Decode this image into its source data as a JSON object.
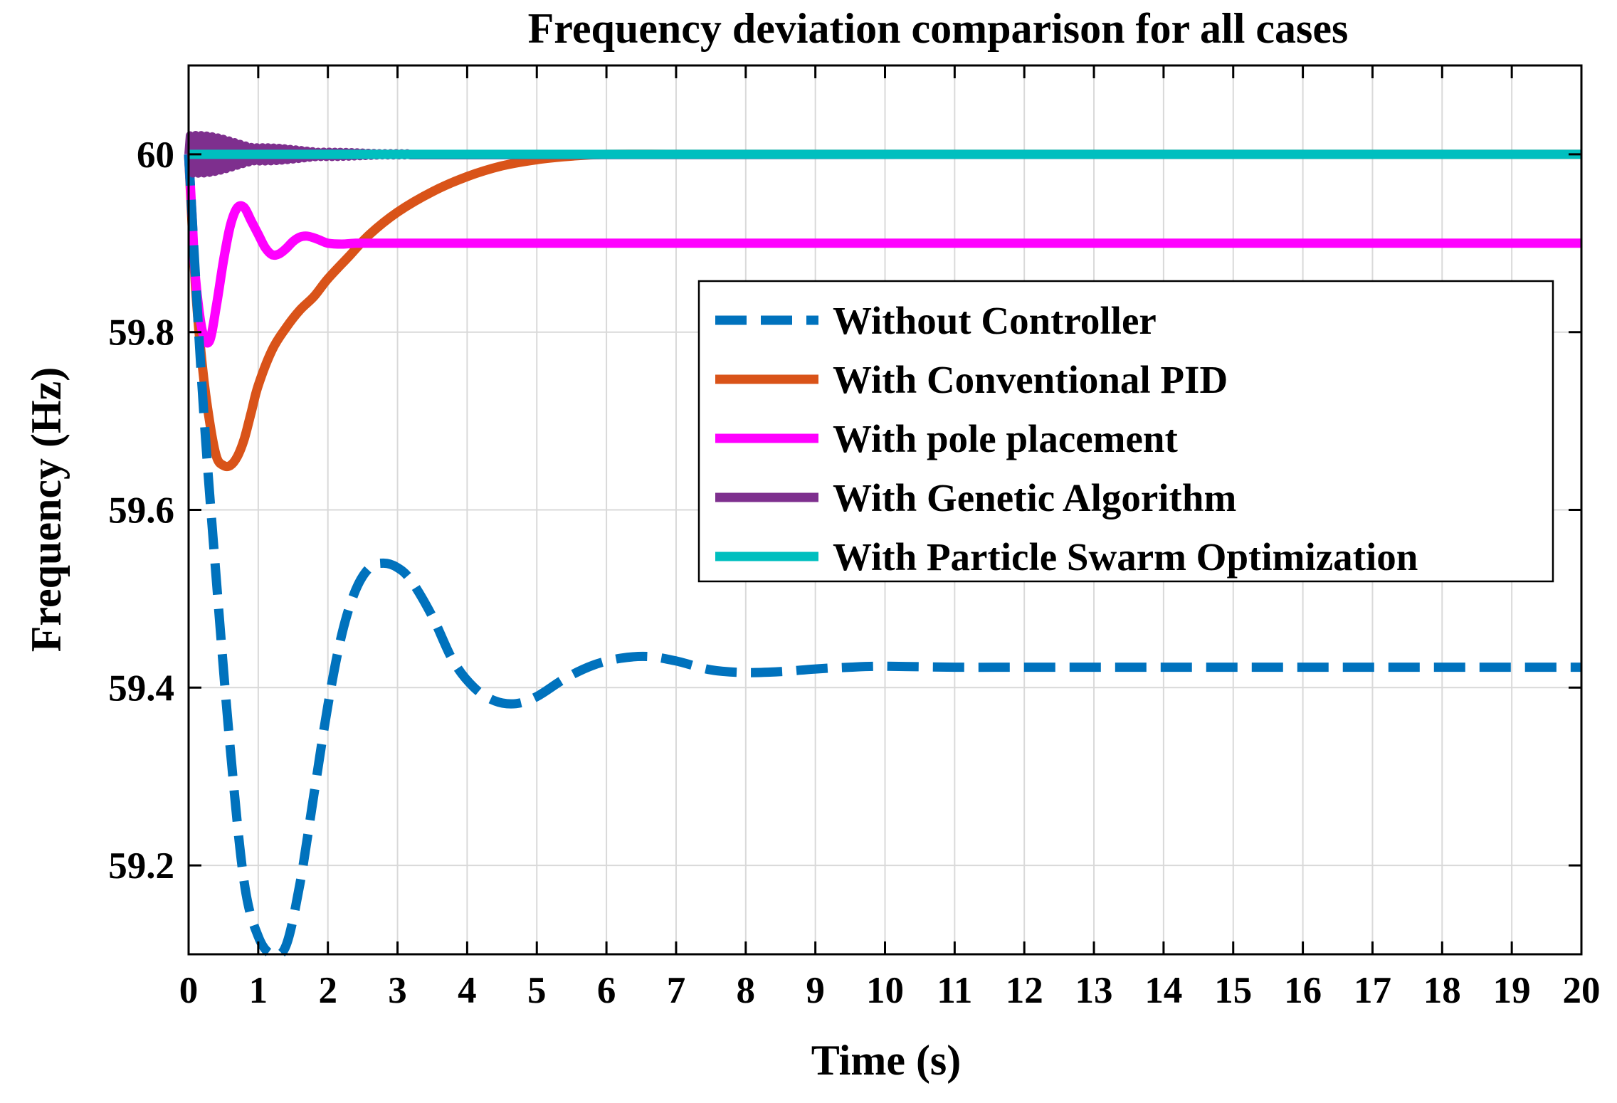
{
  "colors": {
    "without": "#0072BD",
    "pid": "#D95319",
    "pole": "#FF00FF",
    "ga": "#7E2F8E",
    "pso": "#00BFBF"
  },
  "chart_data": {
    "type": "line",
    "title": "Frequency deviation comparison for all cases",
    "xlabel": "Time (s)",
    "ylabel": "Frequency (Hz)",
    "xlim": [
      0,
      20
    ],
    "ylim": [
      59.1,
      60.1
    ],
    "xticks": [
      0,
      1,
      2,
      3,
      4,
      5,
      6,
      7,
      8,
      9,
      10,
      11,
      12,
      13,
      14,
      15,
      16,
      17,
      18,
      19,
      20
    ],
    "yticks": [
      59.2,
      59.4,
      59.6,
      59.8,
      60
    ],
    "ytick_labels": [
      "59.2",
      "59.4",
      "59.6",
      "59.8",
      "60"
    ],
    "grid": true,
    "legend_position": "right",
    "series": [
      {
        "name": "Without Controller",
        "style": "dashed",
        "color": "#0072BD",
        "x": [
          0,
          0.2,
          0.4,
          0.6,
          0.8,
          1.0,
          1.2,
          1.4,
          1.6,
          1.8,
          2.0,
          2.2,
          2.4,
          2.6,
          2.8,
          3.0,
          3.2,
          3.5,
          3.8,
          4.1,
          4.4,
          4.7,
          5.0,
          5.4,
          5.8,
          6.2,
          6.6,
          7.0,
          7.5,
          8.0,
          8.5,
          9.0,
          9.5,
          10.0,
          11,
          12,
          13,
          14,
          15,
          16,
          17,
          18,
          19,
          20
        ],
        "y": [
          60.0,
          59.73,
          59.52,
          59.33,
          59.18,
          59.12,
          59.1,
          59.11,
          59.18,
          59.28,
          59.38,
          59.46,
          59.51,
          59.535,
          59.54,
          59.535,
          59.52,
          59.48,
          59.43,
          59.4,
          59.385,
          59.382,
          59.39,
          59.41,
          59.425,
          59.433,
          59.435,
          59.43,
          59.42,
          59.417,
          59.418,
          59.421,
          59.423,
          59.424,
          59.423,
          59.423,
          59.423,
          59.423,
          59.423,
          59.423,
          59.423,
          59.423,
          59.423,
          59.423
        ]
      },
      {
        "name": "With Conventional PID",
        "style": "solid",
        "color": "#D95319",
        "x": [
          0,
          0.1,
          0.2,
          0.3,
          0.4,
          0.5,
          0.6,
          0.7,
          0.8,
          0.9,
          1.0,
          1.2,
          1.4,
          1.6,
          1.8,
          2.0,
          2.3,
          2.6,
          3.0,
          3.5,
          4.0,
          4.5,
          5.0,
          5.5,
          6.0,
          7.0,
          8.0,
          10,
          15,
          20
        ],
        "y": [
          60.0,
          59.85,
          59.76,
          59.7,
          59.66,
          59.65,
          59.65,
          59.66,
          59.68,
          59.71,
          59.74,
          59.78,
          59.805,
          59.825,
          59.84,
          59.86,
          59.885,
          59.91,
          59.935,
          59.958,
          59.975,
          59.987,
          59.994,
          59.998,
          60.0,
          60.0,
          60.0,
          60.0,
          60.0,
          60.0
        ]
      },
      {
        "name": "With pole placement",
        "style": "solid",
        "color": "#FF00FF",
        "x": [
          0,
          0.05,
          0.1,
          0.2,
          0.3,
          0.4,
          0.5,
          0.6,
          0.7,
          0.8,
          0.9,
          1.0,
          1.1,
          1.2,
          1.3,
          1.4,
          1.5,
          1.6,
          1.7,
          1.8,
          1.9,
          2.0,
          2.2,
          2.4,
          2.6,
          3.0,
          4,
          5,
          10,
          15,
          20
        ],
        "y": [
          60.0,
          59.93,
          59.86,
          59.8,
          59.79,
          59.83,
          59.88,
          59.92,
          59.94,
          59.94,
          59.925,
          59.91,
          59.895,
          59.887,
          59.888,
          59.894,
          59.902,
          59.907,
          59.908,
          59.906,
          59.903,
          59.9,
          59.899,
          59.9,
          59.9,
          59.9,
          59.9,
          59.9,
          59.9,
          59.9,
          59.9
        ]
      },
      {
        "name": "With Genetic Algorithm",
        "style": "solid",
        "color": "#7E2F8E",
        "oscillation": {
          "center": 60.0,
          "amplitude_start": 0.03,
          "decay_end_time": 3.2,
          "period": 0.08
        },
        "x": [
          0,
          20
        ],
        "y": [
          60.0,
          60.0
        ]
      },
      {
        "name": "With Particle Swarm Optimization",
        "style": "solid",
        "color": "#00BFBF",
        "x": [
          0,
          20
        ],
        "y": [
          60.0,
          60.0
        ]
      }
    ]
  }
}
